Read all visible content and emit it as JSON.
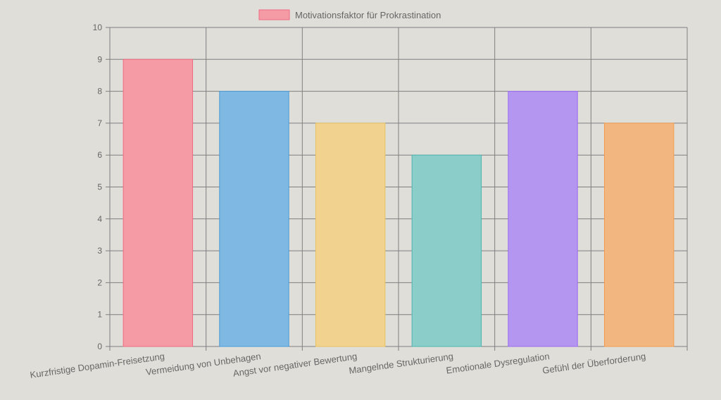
{
  "chart_data": {
    "type": "bar",
    "categories": [
      "Kurzfristige Dopamin-Freisetzung",
      "Vermeidung von Unbehagen",
      "Angst vor negativer Bewertung",
      "Mangelnde Strukturierung",
      "Emotionale Dysregulation",
      "Gefühl der Überforderung"
    ],
    "series": [
      {
        "name": "Motivationsfaktor für Prokrastination",
        "values": [
          9,
          8,
          7,
          6,
          8,
          7
        ]
      }
    ],
    "colors": {
      "fills": [
        "#f49ba6",
        "#7fb9e3",
        "#f1d38f",
        "#8bcdc9",
        "#b495f0",
        "#f2b780"
      ],
      "strokes": [
        "#ee6b81",
        "#4a9ad6",
        "#e8c15f",
        "#4fb5b0",
        "#9b6cf0",
        "#f29c4e"
      ],
      "grid": "#7f7f7f",
      "background": "#e0ded9"
    },
    "ylim": [
      0,
      10
    ],
    "yticks": [
      "0",
      "1",
      "2",
      "3",
      "4",
      "5",
      "6",
      "7",
      "8",
      "9",
      "10"
    ],
    "grid": true,
    "legend_position": "top-center"
  }
}
